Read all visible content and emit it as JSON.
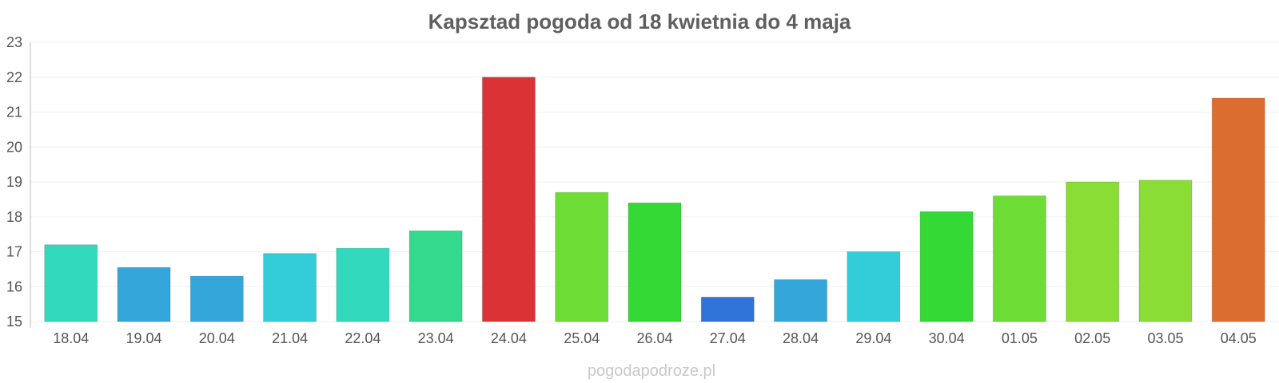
{
  "chart_data": {
    "type": "bar",
    "title": "Kapsztad pogoda od 18 kwietnia do 4 maja",
    "xlabel": "",
    "ylabel": "",
    "ylim": [
      15,
      23
    ],
    "yticks": [
      "15",
      "16",
      "17",
      "18",
      "19",
      "20",
      "21",
      "22",
      "23"
    ],
    "categories": [
      "18.04",
      "19.04",
      "20.04",
      "21.04",
      "22.04",
      "23.04",
      "24.04",
      "25.04",
      "26.04",
      "27.04",
      "28.04",
      "29.04",
      "30.04",
      "01.05",
      "02.05",
      "03.05",
      "04.05"
    ],
    "values": [
      17.2,
      16.55,
      16.3,
      16.95,
      17.1,
      17.6,
      22.0,
      18.7,
      18.4,
      15.7,
      16.2,
      17.0,
      18.15,
      18.6,
      19.0,
      19.05,
      21.4
    ],
    "colors": [
      "#33d9bc",
      "#35a6d9",
      "#35a6d9",
      "#33cdd9",
      "#33d9bc",
      "#33d98c",
      "#db3235",
      "#6ddd35",
      "#35d935",
      "#3073d9",
      "#35a6d9",
      "#33cdd9",
      "#35d935",
      "#6ddd35",
      "#8add35",
      "#8add35",
      "#dc6d31"
    ],
    "grid": true,
    "legend": "none"
  },
  "watermark": "pogodapodroze.pl"
}
